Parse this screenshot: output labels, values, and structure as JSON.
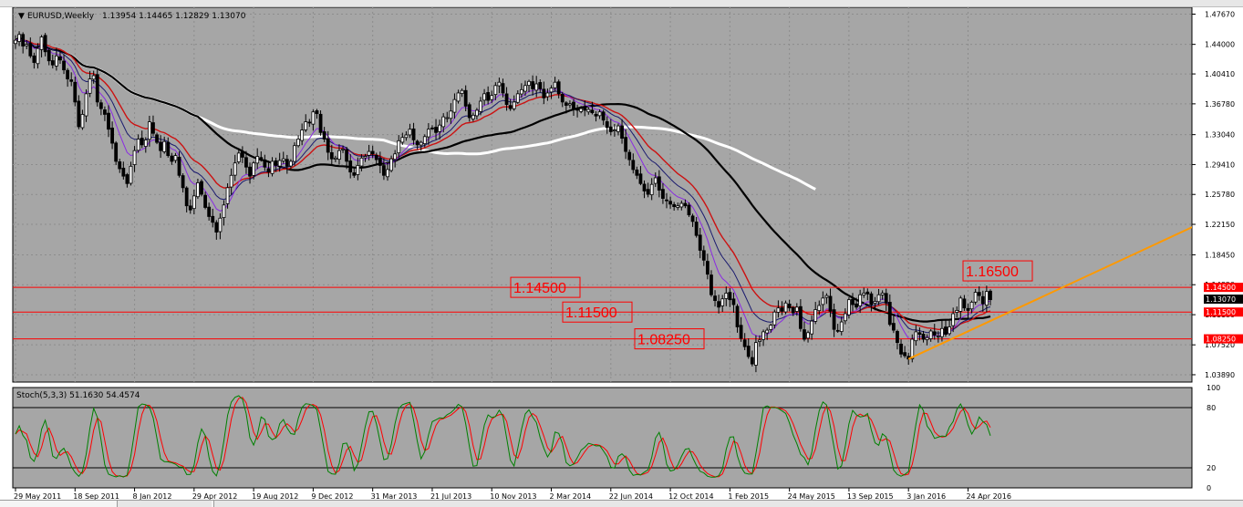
{
  "window": {
    "title": "EURUSD,Weekly",
    "ohlc": "1.13954 1.14465 1.12829 1.13070"
  },
  "stoch": {
    "label": "Stoch(5,3,3) 51.1630 54.4574"
  },
  "colors": {
    "plot_bg": "#a6a6a6",
    "bull": "#000000",
    "bear": "#000000",
    "wick": "#000000",
    "ma_white": "#ffffff",
    "ma_black": "#000000",
    "ma_red": "#cc1111",
    "ma_navy": "#1a1a6e",
    "ma_purple": "#8a2be2",
    "hline": "#ff0000",
    "trend": "#ff9900",
    "stoch_main": "#008000",
    "stoch_signal": "#ff0000"
  },
  "chart_data": {
    "type": "candlestick",
    "symbol": "EURUSD",
    "timeframe": "Weekly",
    "ylim": [
      1.03,
      1.485
    ],
    "y_ticks": [
      "1.47670",
      "1.44000",
      "1.40410",
      "1.36780",
      "1.33040",
      "1.29410",
      "1.25780",
      "1.22150",
      "1.18450",
      "1.14820",
      "1.11180",
      "1.07520",
      "1.03890"
    ],
    "y_tick_values": [
      1.4767,
      1.44,
      1.4041,
      1.3678,
      1.3304,
      1.2941,
      1.2578,
      1.2215,
      1.1845,
      1.1482,
      1.1118,
      1.0752,
      1.0389
    ],
    "x_ticks": [
      "29 May 2011",
      "18 Sep 2011",
      "8 Jan 2012",
      "29 Apr 2012",
      "19 Aug 2012",
      "9 Dec 2012",
      "31 Mar 2013",
      "21 Jul 2013",
      "10 Nov 2013",
      "2 Mar 2014",
      "22 Jun 2014",
      "12 Oct 2014",
      "1 Feb 2015",
      "24 May 2015",
      "13 Sep 2015",
      "3 Jan 2016",
      "24 Apr 2016"
    ],
    "x_tick_bar_index": [
      0,
      16,
      32,
      48,
      64,
      80,
      96,
      112,
      128,
      144,
      160,
      176,
      192,
      208,
      224,
      240,
      256
    ],
    "closes": [
      1.445,
      1.452,
      1.438,
      1.44,
      1.426,
      1.418,
      1.435,
      1.449,
      1.431,
      1.42,
      1.415,
      1.426,
      1.421,
      1.409,
      1.398,
      1.395,
      1.37,
      1.34,
      1.355,
      1.38,
      1.398,
      1.402,
      1.37,
      1.362,
      1.355,
      1.337,
      1.32,
      1.298,
      1.289,
      1.28,
      1.271,
      1.292,
      1.311,
      1.325,
      1.318,
      1.324,
      1.346,
      1.332,
      1.321,
      1.311,
      1.322,
      1.305,
      1.298,
      1.305,
      1.281,
      1.266,
      1.244,
      1.239,
      1.256,
      1.272,
      1.258,
      1.242,
      1.231,
      1.224,
      1.212,
      1.229,
      1.245,
      1.266,
      1.281,
      1.296,
      1.308,
      1.303,
      1.291,
      1.28,
      1.296,
      1.304,
      1.301,
      1.291,
      1.285,
      1.298,
      1.293,
      1.299,
      1.301,
      1.292,
      1.298,
      1.317,
      1.325,
      1.336,
      1.346,
      1.345,
      1.358,
      1.356,
      1.333,
      1.325,
      1.309,
      1.301,
      1.302,
      1.311,
      1.313,
      1.298,
      1.285,
      1.281,
      1.293,
      1.302,
      1.304,
      1.31,
      1.307,
      1.3,
      1.293,
      1.281,
      1.288,
      1.301,
      1.307,
      1.323,
      1.327,
      1.33,
      1.337,
      1.324,
      1.318,
      1.321,
      1.328,
      1.337,
      1.338,
      1.333,
      1.342,
      1.352,
      1.351,
      1.359,
      1.373,
      1.381,
      1.384,
      1.365,
      1.351,
      1.354,
      1.36,
      1.371,
      1.38,
      1.372,
      1.378,
      1.39,
      1.394,
      1.381,
      1.367,
      1.362,
      1.37,
      1.38,
      1.385,
      1.39,
      1.395,
      1.386,
      1.392,
      1.386,
      1.375,
      1.381,
      1.387,
      1.394,
      1.38,
      1.37,
      1.366,
      1.368,
      1.361,
      1.36,
      1.362,
      1.36,
      1.361,
      1.357,
      1.353,
      1.358,
      1.348,
      1.339,
      1.334,
      1.336,
      1.341,
      1.326,
      1.31,
      1.3,
      1.288,
      1.281,
      1.271,
      1.262,
      1.258,
      1.27,
      1.278,
      1.263,
      1.253,
      1.251,
      1.246,
      1.243,
      1.244,
      1.247,
      1.244,
      1.233,
      1.225,
      1.208,
      1.19,
      1.178,
      1.161,
      1.136,
      1.129,
      1.121,
      1.131,
      1.138,
      1.13,
      1.124,
      1.097,
      1.083,
      1.073,
      1.061,
      1.052,
      1.078,
      1.081,
      1.091,
      1.093,
      1.099,
      1.115,
      1.12,
      1.116,
      1.126,
      1.12,
      1.114,
      1.121,
      1.095,
      1.082,
      1.09,
      1.104,
      1.118,
      1.123,
      1.132,
      1.135,
      1.116,
      1.094,
      1.092,
      1.103,
      1.113,
      1.13,
      1.124,
      1.121,
      1.136,
      1.138,
      1.137,
      1.124,
      1.128,
      1.136,
      1.138,
      1.126,
      1.1,
      1.093,
      1.078,
      1.064,
      1.062,
      1.058,
      1.082,
      1.091,
      1.088,
      1.082,
      1.084,
      1.092,
      1.087,
      1.086,
      1.095,
      1.088,
      1.097,
      1.113,
      1.117,
      1.132,
      1.12,
      1.117,
      1.127,
      1.139,
      1.135,
      1.125,
      1.14,
      1.13
    ],
    "horizontal_levels": [
      {
        "value": 1.145,
        "label": "1.14500"
      },
      {
        "value": 1.115,
        "label": "1.11500"
      },
      {
        "value": 1.0825,
        "label": "1.08250"
      }
    ],
    "price_tags": [
      {
        "value": 1.145,
        "label": "1.14500",
        "bg": "#ff0000",
        "fg": "#ffffff"
      },
      {
        "value": 1.1307,
        "label": "1.13070",
        "bg": "#000000",
        "fg": "#ffffff"
      },
      {
        "value": 1.115,
        "label": "1.11500",
        "bg": "#ff0000",
        "fg": "#ffffff"
      },
      {
        "value": 1.0825,
        "label": "1.08250",
        "bg": "#ff0000",
        "fg": "#ffffff"
      }
    ],
    "text_labels": [
      {
        "text": "1.14500",
        "at": "level-1.145"
      },
      {
        "text": "1.11500",
        "at": "level-1.115"
      },
      {
        "text": "1.08250",
        "at": "level-1.0825"
      },
      {
        "text": "1.16500",
        "at": "resistance-1.165"
      }
    ],
    "trendline": {
      "from": [
        240,
        1.058
      ],
      "to": [
        340,
        1.268
      ]
    },
    "stochastic": {
      "k": 5,
      "d": 3,
      "slowing": 3,
      "main_last": 51.163,
      "signal_last": 54.4574,
      "levels": [
        20,
        80
      ],
      "ylim": [
        0,
        100
      ],
      "y_ticks": [
        "100",
        "80",
        "20",
        "0"
      ]
    }
  }
}
